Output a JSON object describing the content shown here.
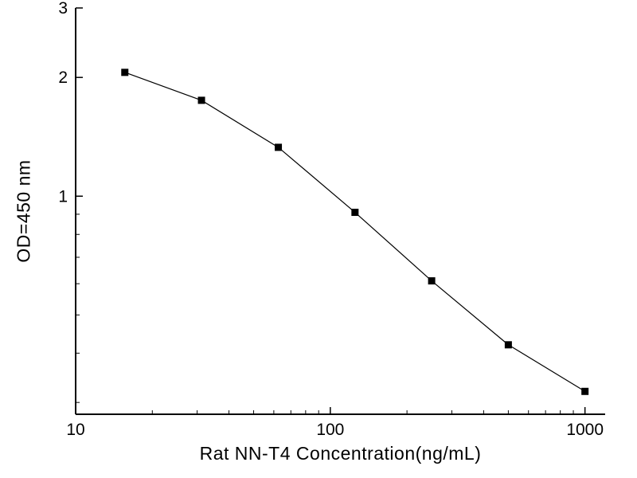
{
  "chart_data": {
    "type": "line",
    "title": "",
    "xlabel": "Rat NN-T4  Concentration(ng/mL)",
    "ylabel": "OD=450 nm",
    "xscale": "log",
    "yscale": "log",
    "xlim": [
      10,
      1200
    ],
    "ylim": [
      0.28,
      3
    ],
    "x": [
      15.6,
      31.2,
      62.5,
      125,
      250,
      500,
      1000
    ],
    "y": [
      2.06,
      1.75,
      1.33,
      0.91,
      0.61,
      0.42,
      0.32
    ],
    "x_major_ticks": [
      10,
      100,
      1000
    ],
    "x_major_tick_labels": [
      "10",
      "100",
      "1000"
    ],
    "y_major_ticks": [
      1,
      2,
      3
    ],
    "y_major_tick_labels": [
      "1",
      "2",
      "3"
    ],
    "marker": "filled-square",
    "marker_size": 9,
    "line_color": "#000000",
    "marker_color": "#000000",
    "axis_color": "#000000",
    "background_color": "#ffffff",
    "grid": false,
    "legend": "none"
  }
}
